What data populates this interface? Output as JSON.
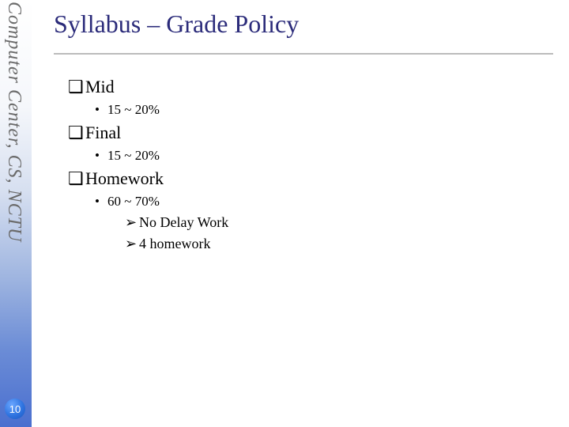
{
  "sidebar": {
    "label": "Computer Center, CS, NCTU",
    "gradient_top": "#ffffff",
    "gradient_bottom": "#4a6fcf"
  },
  "slide_number": "10",
  "title": "Syllabus – Grade Policy",
  "colors": {
    "title": "#2b2b7a",
    "rule": "#bcbcbc",
    "body_text": "#000000",
    "slide_badge": "#2f74e0"
  },
  "fonts": {
    "title_size_pt": 32,
    "lvl1_size_pt": 22,
    "lvl2_size_pt": 17,
    "lvl3_size_pt": 18,
    "sidebar_size_pt": 24
  },
  "items": {
    "mid": {
      "label": "Mid",
      "detail": "15 ~ 20%"
    },
    "final": {
      "label": "Final",
      "detail": "15 ~ 20%"
    },
    "homework": {
      "label": "Homework",
      "detail": "60 ~ 70%",
      "sub1": "No Delay Work",
      "sub2": "4 homework"
    }
  },
  "bullets": {
    "lvl1": "❑",
    "lvl2": "•",
    "lvl3": "➢"
  }
}
